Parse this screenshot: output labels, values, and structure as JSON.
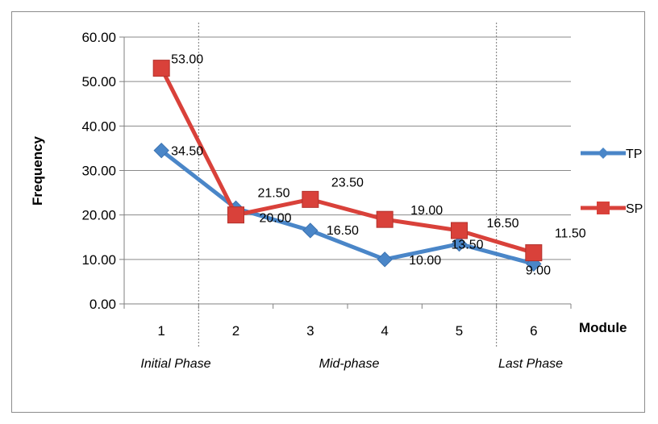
{
  "chart_data": {
    "type": "line",
    "categories": [
      "1",
      "2",
      "3",
      "4",
      "5",
      "6"
    ],
    "series": [
      {
        "name": "TP",
        "values": [
          34.5,
          21.5,
          16.5,
          10.0,
          13.5,
          9.0
        ],
        "labels": [
          "34.50",
          "21.50",
          "16.50",
          "10.00",
          "13.50",
          "9.00"
        ],
        "color": "#4a86c8"
      },
      {
        "name": "SP",
        "values": [
          53.0,
          20.0,
          23.5,
          19.0,
          16.5,
          11.5
        ],
        "labels": [
          "53.00",
          "20.00",
          "23.50",
          "19.00",
          "16.50",
          "11.50"
        ],
        "color": "#d9413a"
      }
    ],
    "xlabel": "Module",
    "ylabel": "Frequency",
    "ylim": [
      0,
      60
    ],
    "yticks": [
      "0.00",
      "10.00",
      "20.00",
      "30.00",
      "40.00",
      "50.00",
      "60.00"
    ],
    "grid": true,
    "legend_position": "right",
    "phases": [
      "Initial Phase",
      "Mid-phase",
      "Last Phase"
    ]
  }
}
